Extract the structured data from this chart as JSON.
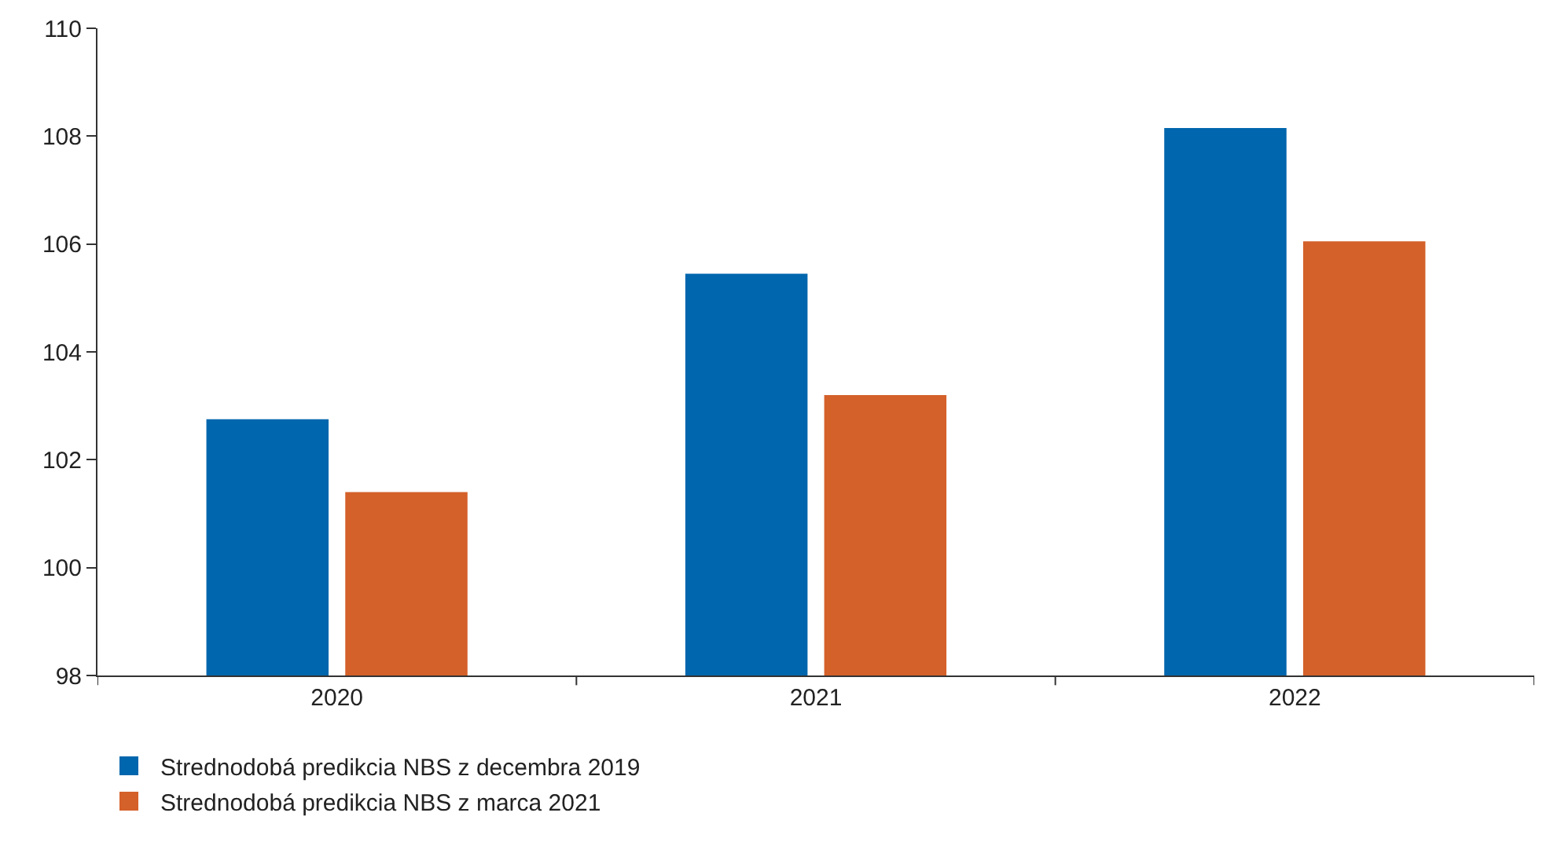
{
  "chart_data": {
    "type": "bar",
    "categories": [
      "2020",
      "2021",
      "2022"
    ],
    "series": [
      {
        "name": "Strednodobá predikcia NBS z decembra 2019",
        "color": "#0066ad",
        "values": [
          102.75,
          105.45,
          108.15
        ]
      },
      {
        "name": "Strednodobá predikcia NBS z marca 2021",
        "color": "#d4602a",
        "values": [
          101.4,
          103.2,
          106.05
        ]
      }
    ],
    "ylim": [
      98,
      110
    ],
    "yticks": [
      98,
      100,
      102,
      104,
      106,
      108,
      110
    ],
    "legend": "bottom"
  }
}
